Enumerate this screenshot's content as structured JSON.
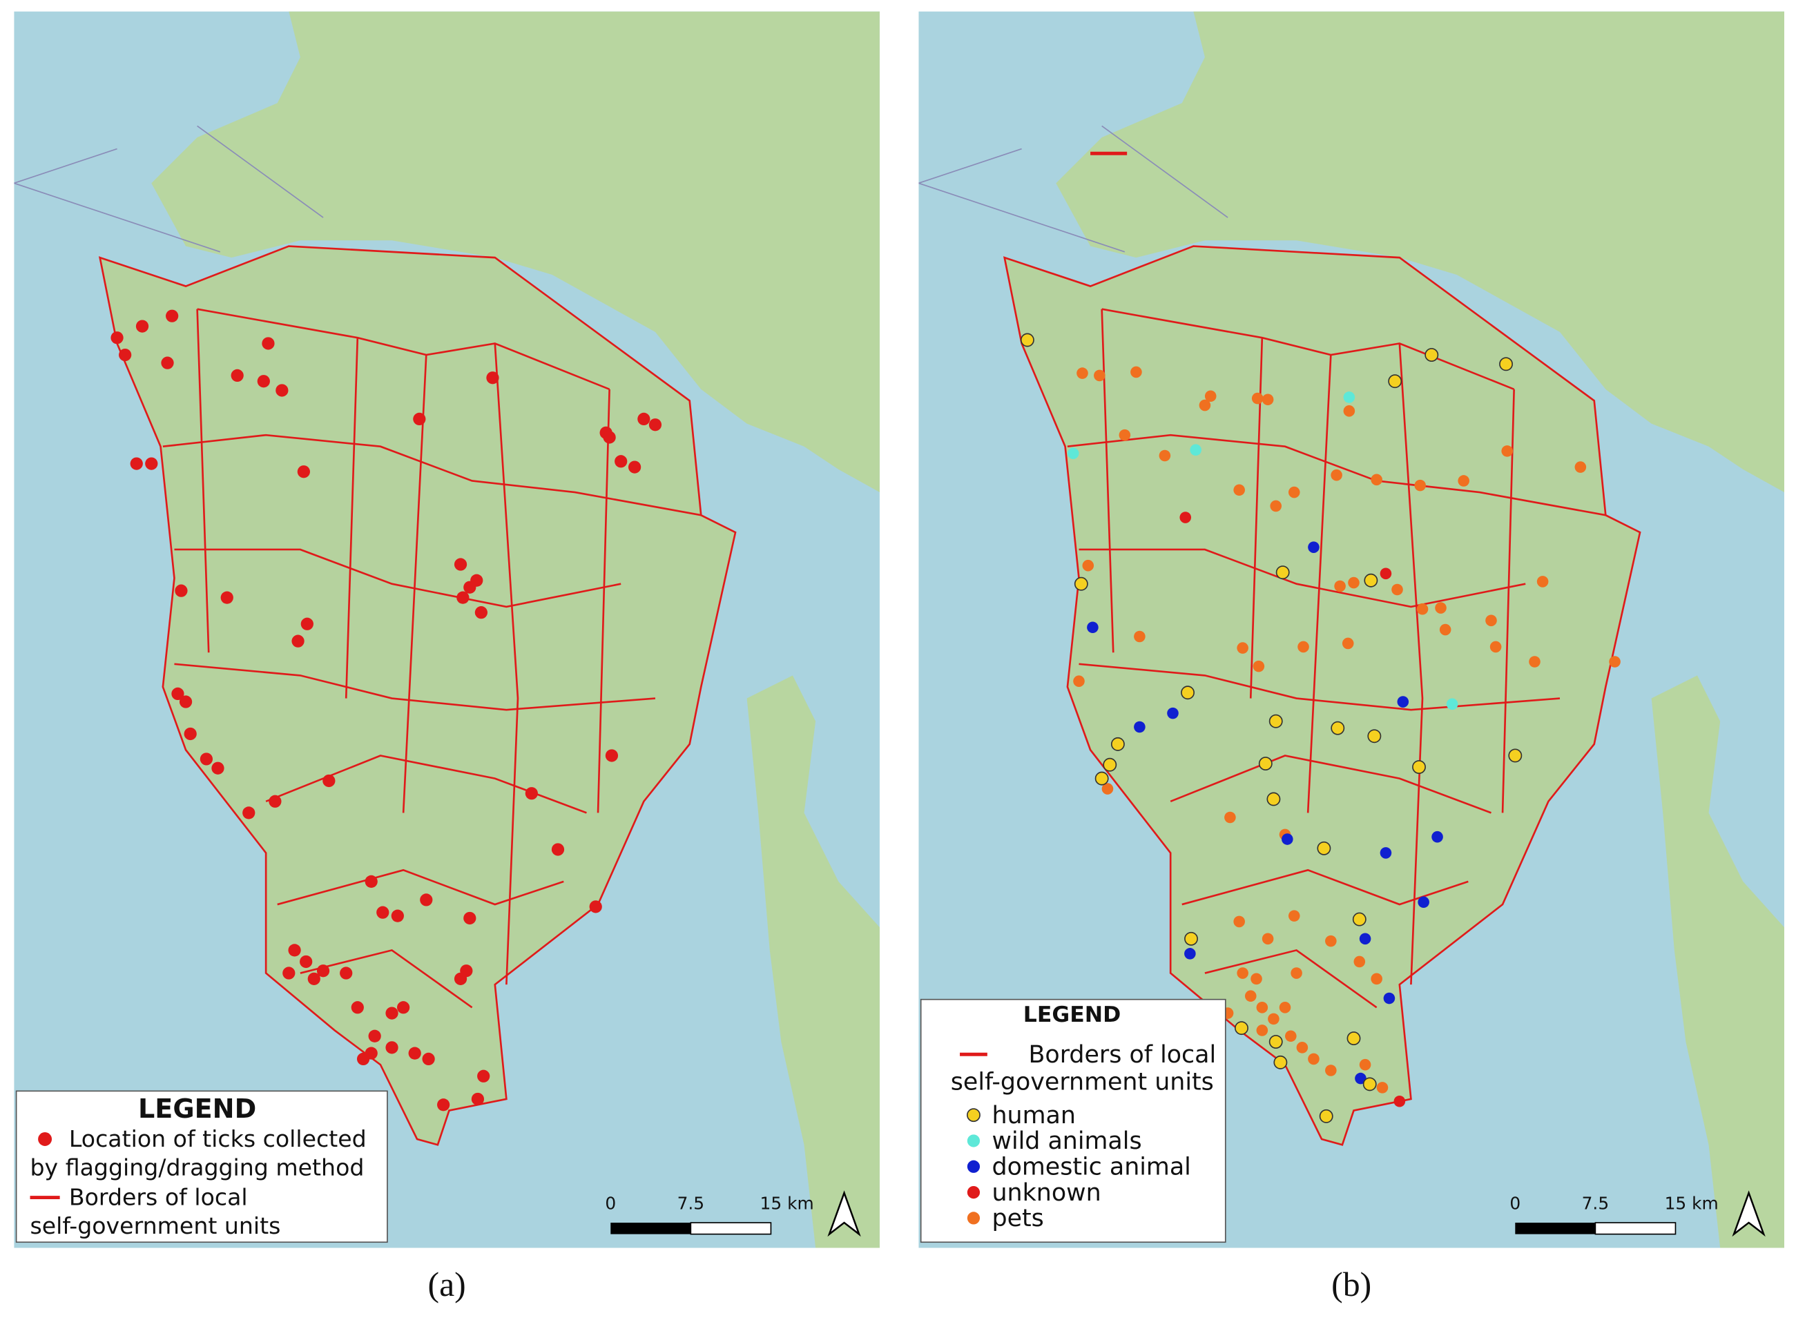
{
  "panels": [
    {
      "caption": "(a)",
      "legend": {
        "title": "LEGEND",
        "points": [
          "Location of ticks collected",
          "by flagging/dragging method"
        ],
        "borders": [
          "Borders of local",
          "self-government units"
        ]
      },
      "scale": [
        "0",
        "7.5",
        "15 km"
      ]
    },
    {
      "caption": "(b)",
      "legend": {
        "title": "LEGEND",
        "borders": [
          "Borders of local",
          "self-government units"
        ],
        "categories": [
          "human",
          "wild animals",
          "domestic animal",
          "unknown",
          "pets"
        ]
      },
      "scale": [
        "0",
        "7.5",
        "15 km"
      ]
    }
  ]
}
